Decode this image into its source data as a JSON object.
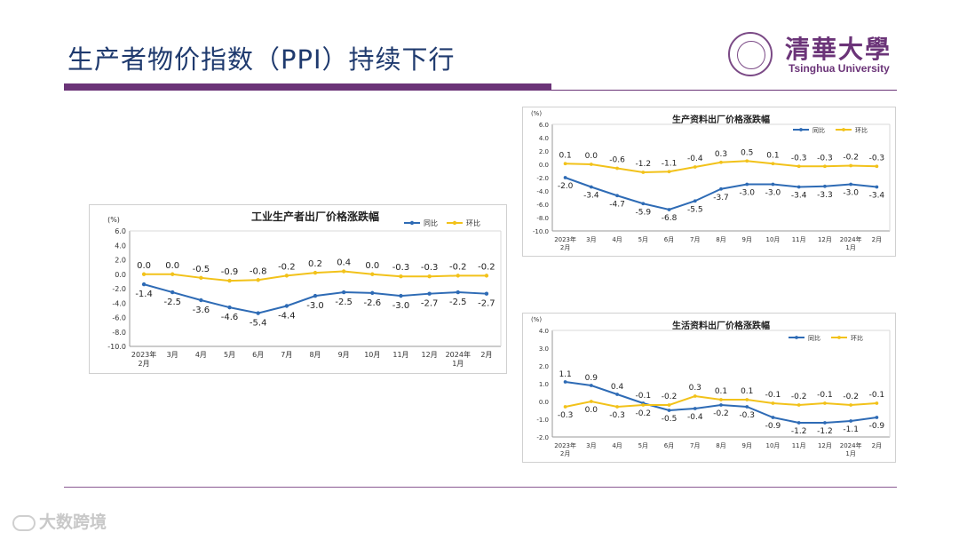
{
  "slide": {
    "title": "生产者物价指数（PPI）持续下行",
    "logo_cn": "清華大學",
    "logo_en": "Tsinghua University",
    "watermark": "大数跨境"
  },
  "colors": {
    "yoy": "#2e6bb5",
    "mom": "#f2c21a",
    "accent": "#6b3478"
  },
  "chart_data": [
    {
      "type": "line",
      "title": "工业生产者出厂价格涨跌幅",
      "yunit": "(%)",
      "ylim": [
        -10.0,
        6.0
      ],
      "yticks": [
        "6.0",
        "4.0",
        "2.0",
        "0.0",
        "-2.0",
        "-4.0",
        "-6.0",
        "-8.0",
        "-10.0"
      ],
      "categories": [
        "2023年\n2月",
        "3月",
        "4月",
        "5月",
        "6月",
        "7月",
        "8月",
        "9月",
        "10月",
        "11月",
        "12月",
        "2024年\n1月",
        "2月"
      ],
      "series": [
        {
          "name": "同比",
          "values": [
            -1.4,
            -2.5,
            -3.6,
            -4.6,
            -5.4,
            -4.4,
            -3.0,
            -2.5,
            -2.6,
            -3.0,
            -2.7,
            -2.5,
            -2.7
          ]
        },
        {
          "name": "环比",
          "values": [
            0.0,
            0.0,
            -0.5,
            -0.9,
            -0.8,
            -0.2,
            0.2,
            0.4,
            0.0,
            -0.3,
            -0.3,
            -0.2,
            -0.2
          ]
        }
      ]
    },
    {
      "type": "line",
      "title": "生产资料出厂价格涨跌幅",
      "yunit": "(%)",
      "ylim": [
        -10.0,
        6.0
      ],
      "yticks": [
        "6.0",
        "4.0",
        "2.0",
        "0.0",
        "-2.0",
        "-4.0",
        "-6.0",
        "-8.0",
        "-10.0"
      ],
      "categories": [
        "2023年\n2月",
        "3月",
        "4月",
        "5月",
        "6月",
        "7月",
        "8月",
        "9月",
        "10月",
        "11月",
        "12月",
        "2024年\n1月",
        "2月"
      ],
      "series": [
        {
          "name": "同比",
          "values": [
            -2.0,
            -3.4,
            -4.7,
            -5.9,
            -6.8,
            -5.5,
            -3.7,
            -3.0,
            -3.0,
            -3.4,
            -3.3,
            -3.0,
            -3.4
          ]
        },
        {
          "name": "环比",
          "values": [
            0.1,
            0.0,
            -0.6,
            -1.2,
            -1.1,
            -0.4,
            0.3,
            0.5,
            0.1,
            -0.3,
            -0.3,
            -0.2,
            -0.3
          ]
        }
      ]
    },
    {
      "type": "line",
      "title": "生活资料出厂价格涨跌幅",
      "yunit": "(%)",
      "ylim": [
        -2.0,
        4.0
      ],
      "yticks": [
        "4.0",
        "3.0",
        "2.0",
        "1.0",
        "0.0",
        "-1.0",
        "-2.0"
      ],
      "categories": [
        "2023年\n2月",
        "3月",
        "4月",
        "5月",
        "6月",
        "7月",
        "8月",
        "9月",
        "10月",
        "11月",
        "12月",
        "2024年\n1月",
        "2月"
      ],
      "series": [
        {
          "name": "同比",
          "values": [
            1.1,
            0.9,
            0.4,
            -0.1,
            -0.5,
            -0.4,
            -0.2,
            -0.3,
            -0.9,
            -1.2,
            -1.2,
            -1.1,
            -0.9
          ]
        },
        {
          "name": "环比",
          "values": [
            -0.3,
            0.0,
            -0.3,
            -0.2,
            -0.2,
            0.3,
            0.1,
            0.1,
            -0.1,
            -0.2,
            -0.1,
            -0.2,
            -0.1
          ]
        }
      ]
    }
  ]
}
